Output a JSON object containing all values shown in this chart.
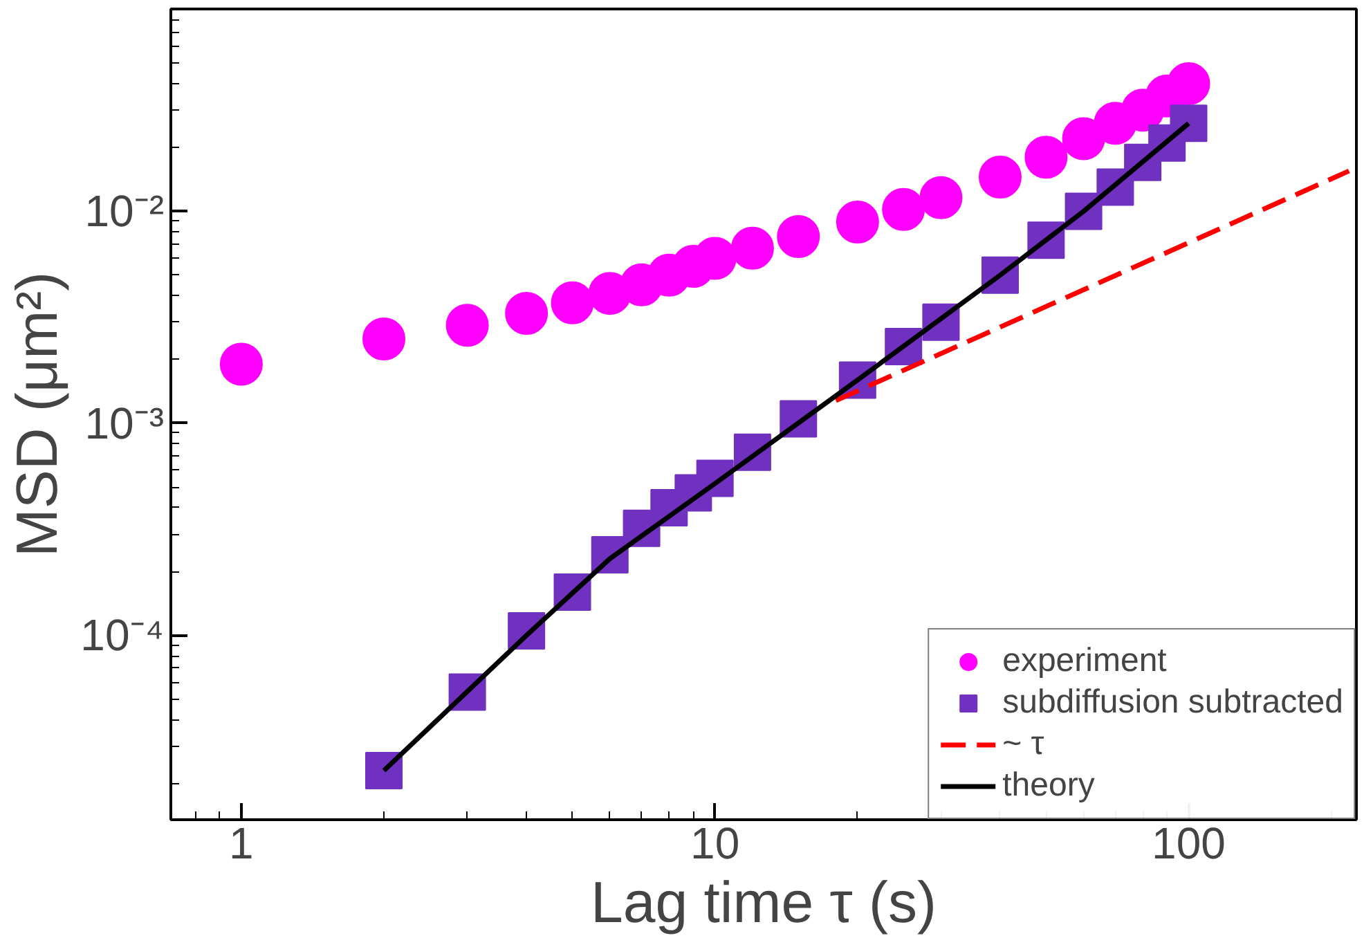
{
  "chart_data": {
    "type": "scatter",
    "xlabel": "Lag time τ (s)",
    "ylabel": "MSD (μm²)",
    "log": "xy",
    "xlim": [
      0.71,
      226
    ],
    "ylim": [
      1.35e-05,
      0.09
    ],
    "xticks": [
      1,
      10,
      100
    ],
    "yticks": [
      {
        "value": 0.0001,
        "label": "10⁻⁴"
      },
      {
        "value": 0.001,
        "label": "10⁻³"
      },
      {
        "value": 0.01,
        "label": "10⁻²"
      }
    ],
    "grid": false,
    "legend": "bottom right",
    "series": [
      {
        "name": "experiment",
        "marker": "circle",
        "color": "#ff00ff",
        "x": [
          1,
          2,
          3,
          4,
          5,
          6,
          7,
          8,
          9,
          10,
          12,
          15,
          20,
          25,
          30,
          40,
          50,
          60,
          70,
          80,
          90,
          100
        ],
        "values": [
          0.0019,
          0.0025,
          0.0029,
          0.0033,
          0.0037,
          0.0041,
          0.0045,
          0.005,
          0.0055,
          0.006,
          0.0067,
          0.0076,
          0.0089,
          0.0102,
          0.0116,
          0.0145,
          0.018,
          0.022,
          0.026,
          0.03,
          0.035,
          0.04
        ]
      },
      {
        "name": "subdiffusion subtracted",
        "marker": "square",
        "color": "#7030c0",
        "x": [
          2,
          3,
          4,
          5,
          6,
          7,
          8,
          9,
          10,
          12,
          15,
          20,
          25,
          30,
          40,
          50,
          60,
          70,
          80,
          90,
          100
        ],
        "values": [
          2.3e-05,
          5.4e-05,
          0.000105,
          0.00016,
          0.00024,
          0.00032,
          0.0004,
          0.00047,
          0.00055,
          0.00073,
          0.00105,
          0.0016,
          0.0023,
          0.003,
          0.005,
          0.0073,
          0.01,
          0.013,
          0.017,
          0.021,
          0.026
        ]
      },
      {
        "name": "~ τ",
        "type": "line",
        "line_style": "dashed",
        "color": "#ff0000",
        "x": [
          18,
          218
        ],
        "values": [
          0.00128,
          0.0155
        ]
      },
      {
        "name": "theory",
        "type": "line",
        "line_style": "solid",
        "color": "#000000",
        "x": [
          2,
          4,
          6,
          10,
          20,
          40,
          60,
          100
        ],
        "values": [
          2.3e-05,
          0.0001,
          0.00023,
          0.00052,
          0.0016,
          0.005,
          0.01,
          0.026
        ]
      }
    ]
  }
}
